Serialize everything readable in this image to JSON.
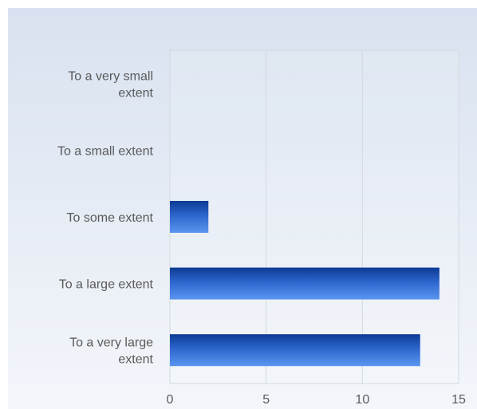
{
  "chart_data": {
    "type": "bar",
    "orientation": "horizontal",
    "categories": [
      [
        "To a very small",
        "extent"
      ],
      [
        "To a small extent"
      ],
      [
        "To some extent"
      ],
      [
        "To a large extent"
      ],
      [
        "To a very large",
        "extent"
      ]
    ],
    "values": [
      0,
      0,
      2,
      14,
      13
    ],
    "xlim": [
      0,
      15
    ],
    "xticks": [
      0,
      5,
      10,
      15
    ],
    "grid": true,
    "colors": {
      "bar_dark": "#0d3a94",
      "bar_mid": "#2c66cc",
      "bar_light": "#5a96f0",
      "grid": "#d4d9e0",
      "label": "#595959"
    }
  }
}
